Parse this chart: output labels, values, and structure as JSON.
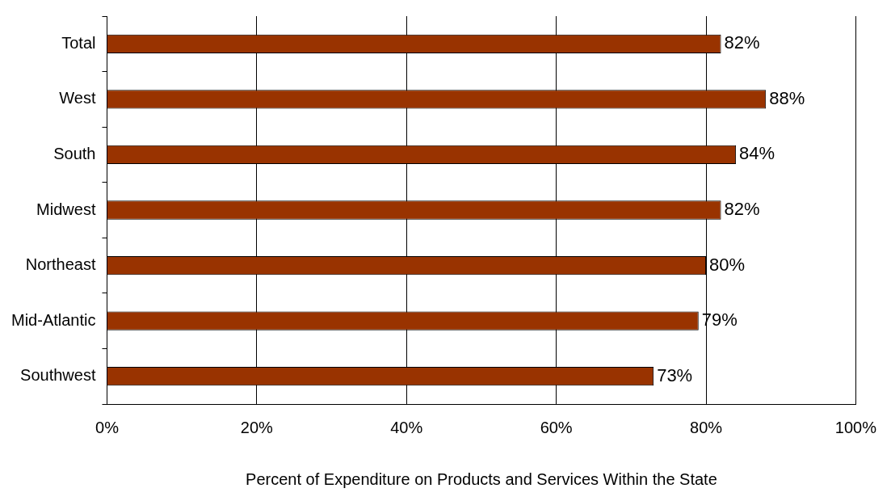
{
  "chart_data": {
    "type": "bar",
    "orientation": "horizontal",
    "xlabel": "Percent of Expenditure on Products and Services Within the State",
    "categories": [
      "Total",
      "West",
      "South",
      "Midwest",
      "Northeast",
      "Mid-Atlantic",
      "Southwest"
    ],
    "values": [
      82,
      88,
      84,
      82,
      80,
      79,
      73
    ],
    "value_labels": [
      "82%",
      "88%",
      "84%",
      "82%",
      "80%",
      "79%",
      "73%"
    ],
    "color": "#993300",
    "xlim": [
      0,
      100
    ],
    "xticks": [
      {
        "value": 0,
        "label": "0%"
      },
      {
        "value": 20,
        "label": "20%"
      },
      {
        "value": 40,
        "label": "40%"
      },
      {
        "value": 60,
        "label": "60%"
      },
      {
        "value": 80,
        "label": "80%"
      },
      {
        "value": 100,
        "label": "100%"
      }
    ],
    "grid": "x",
    "legend": false
  }
}
